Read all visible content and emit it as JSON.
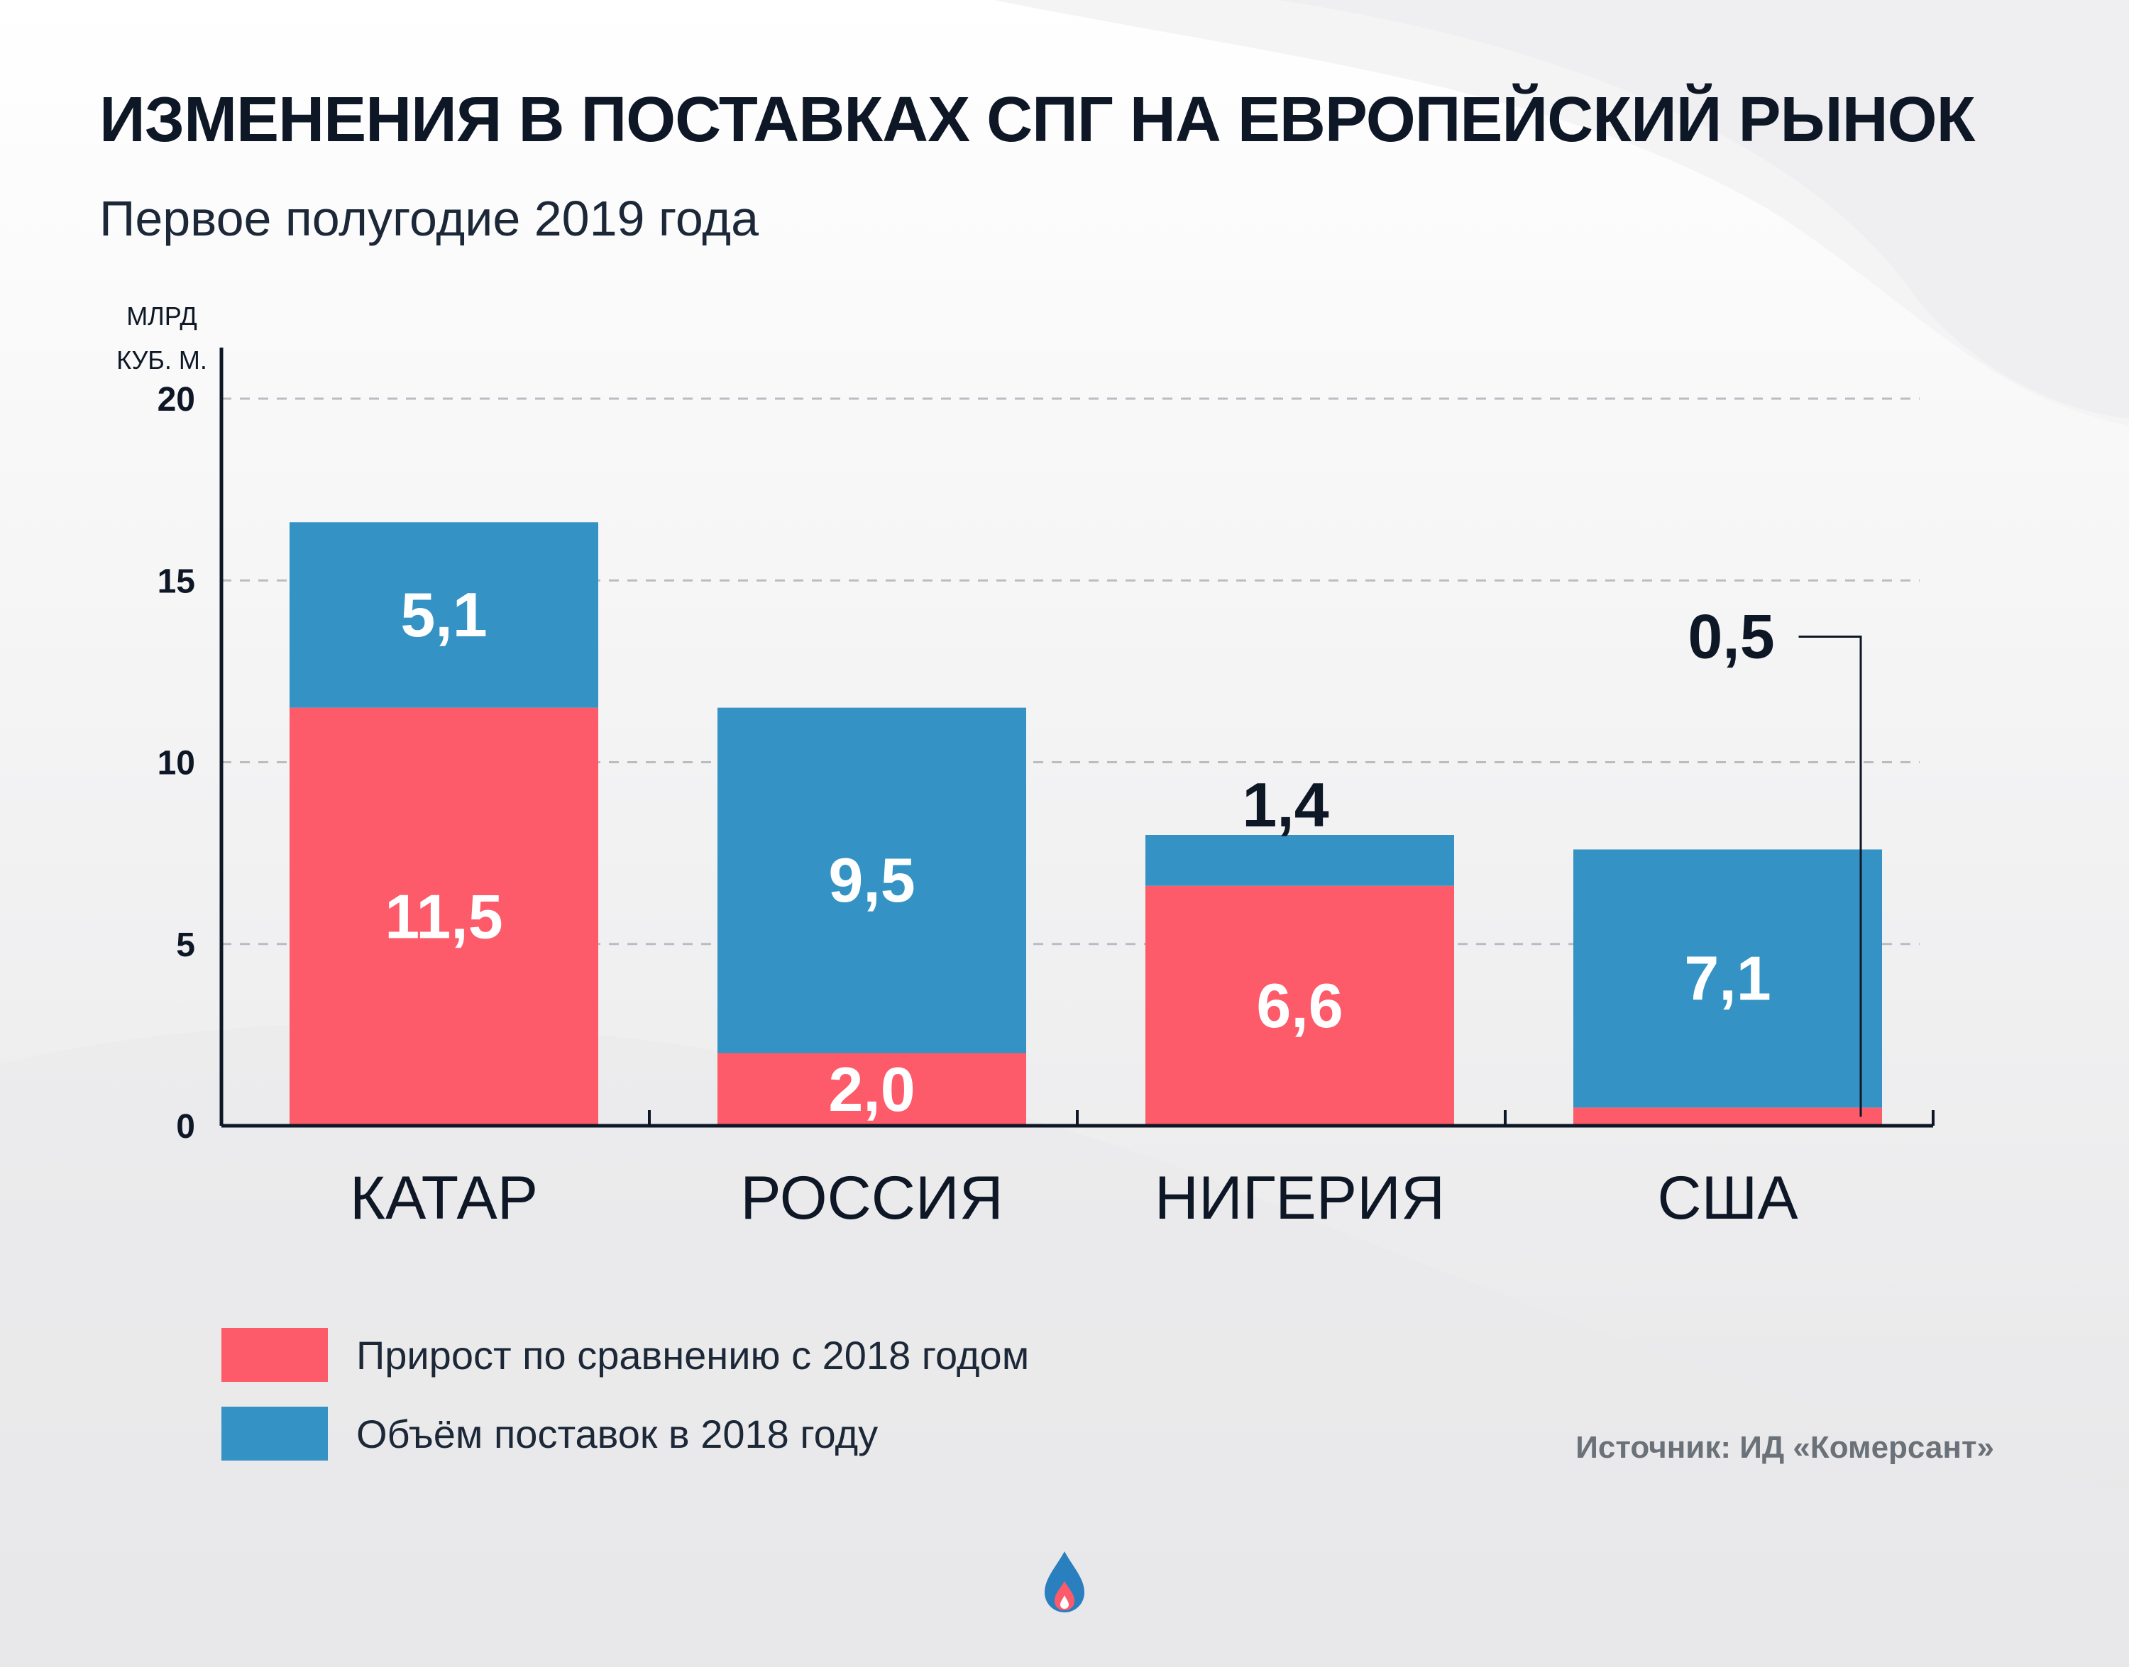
{
  "title": "ИЗМЕНЕНИЯ В ПОСТАВКАХ СПГ НА ЕВРОПЕЙСКИЙ РЫНОК",
  "subtitle": "Первое полугодие 2019 года",
  "source": "Источник:  ИД «Комерсант»",
  "colors": {
    "growth": "#fd5a6a",
    "volume_2018": "#3493c4",
    "text": "#0e1726"
  },
  "chart_data": {
    "type": "bar",
    "stacked": true,
    "ylabel": "МЛРД КУБ. М.",
    "ylabel_lines": [
      "МЛРД",
      "КУБ. М."
    ],
    "ylim": [
      0,
      20
    ],
    "yticks": [
      0,
      5,
      10,
      15,
      20
    ],
    "ytick_labels": [
      "0",
      "5",
      "10",
      "15",
      "20"
    ],
    "grid": true,
    "categories": [
      "КАТАР",
      "РОССИЯ",
      "НИГЕРИЯ",
      "США"
    ],
    "series": [
      {
        "name": "Прирост по сравнению с 2018 годом",
        "color": "#fd5a6a",
        "values": [
          11.5,
          2.0,
          6.6,
          0.5
        ],
        "labels": [
          "11,5",
          "2,0",
          "6,6",
          "0,5"
        ]
      },
      {
        "name": "Объём поставок в 2018 году",
        "color": "#3493c4",
        "values": [
          5.1,
          9.5,
          1.4,
          7.1
        ],
        "labels": [
          "5,1",
          "9,5",
          "1,4",
          "7,1"
        ]
      }
    ],
    "legend": "bottom-left"
  }
}
